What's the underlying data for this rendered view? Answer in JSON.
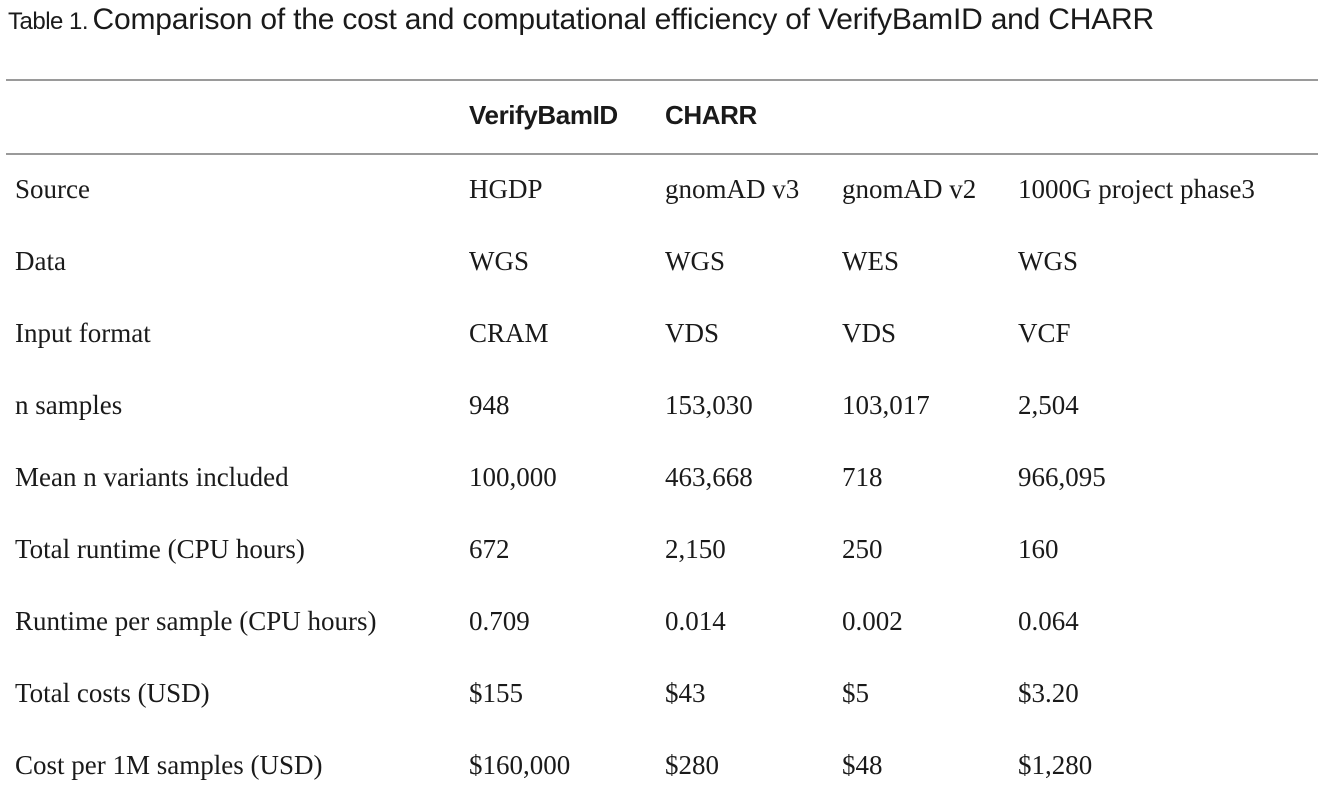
{
  "caption": {
    "label": "Table 1.",
    "text": "Comparison of the cost and computational efficiency of VerifyBamID and CHARR"
  },
  "header": {
    "col1": "VerifyBamID",
    "col2": "CHARR"
  },
  "rows": [
    {
      "label": "Source",
      "values": [
        "HGDP",
        "gnomAD v3",
        "gnomAD v2",
        "1000G project phase3"
      ]
    },
    {
      "label": "Data",
      "values": [
        "WGS",
        "WGS",
        "WES",
        "WGS"
      ]
    },
    {
      "label": "Input format",
      "values": [
        "CRAM",
        "VDS",
        "VDS",
        "VCF"
      ]
    },
    {
      "label": "n samples",
      "values": [
        "948",
        "153,030",
        "103,017",
        "2,504"
      ]
    },
    {
      "label": "Mean n variants included",
      "values": [
        "100,000",
        "463,668",
        "718",
        "966,095"
      ]
    },
    {
      "label": "Total runtime (CPU hours)",
      "values": [
        "672",
        "2,150",
        "250",
        "160"
      ]
    },
    {
      "label": "Runtime per sample (CPU hours)",
      "values": [
        "0.709",
        "0.014",
        "0.002",
        "0.064"
      ]
    },
    {
      "label": "Total costs (USD)",
      "values": [
        "$155",
        "$43",
        "$5",
        "$3.20"
      ]
    },
    {
      "label": "Cost per 1M samples (USD)",
      "values": [
        "$160,000",
        "$280",
        "$48",
        "$1,280"
      ]
    }
  ]
}
